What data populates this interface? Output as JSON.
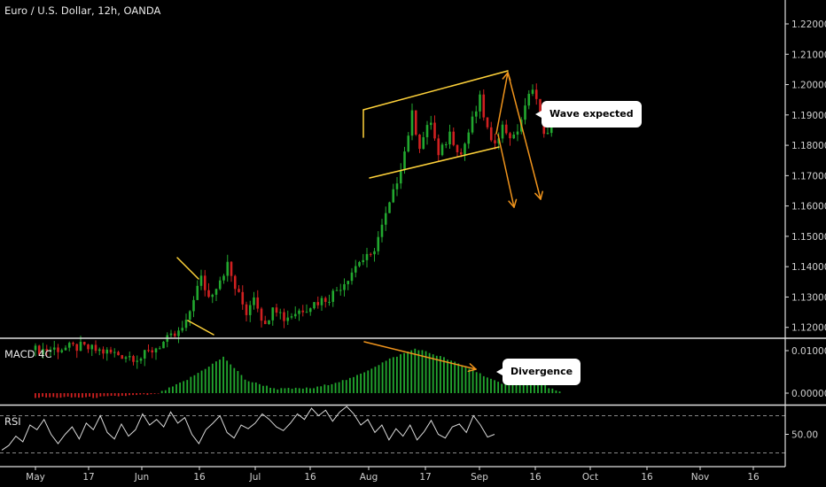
{
  "header": {
    "title": "Euro / U.S. Dollar, 12h, OANDA"
  },
  "macd": {
    "label": "MACD 4C"
  },
  "rsi": {
    "label": "RSI"
  },
  "annotations": {
    "wave": "Wave expected",
    "divergence": "Divergence"
  },
  "colors": {
    "up": "#22a82f",
    "down": "#d02020",
    "trendline": "#ffd23a",
    "arrow": "#f0941c",
    "axis": "#cfcfcf",
    "rsi_line": "#d8d8d8"
  },
  "chart_data": [
    {
      "type": "candlestick",
      "title": "Euro / U.S. Dollar, 12h, OANDA",
      "x_ticks": [
        "May",
        "17",
        "Jun",
        "16",
        "Jul",
        "16",
        "Aug",
        "17",
        "Sep",
        "16",
        "Oct",
        "16",
        "Nov",
        "16"
      ],
      "y_ticks": [
        "1.12000",
        "1.13000",
        "1.14000",
        "1.15000",
        "1.16000",
        "1.17000",
        "1.18000",
        "1.19000",
        "1.20000",
        "1.21000",
        "1.22000"
      ],
      "ylim": [
        1.117,
        1.227
      ],
      "price_path": [
        {
          "x": 0,
          "y": 1.1125
        },
        {
          "x": 6,
          "y": 1.1135
        },
        {
          "x": 10,
          "y": 1.1115
        },
        {
          "x": 14,
          "y": 1.11
        },
        {
          "x": 17,
          "y": 1.115
        },
        {
          "x": 19,
          "y": 1.118
        },
        {
          "x": 20,
          "y": 1.121
        },
        {
          "x": 21,
          "y": 1.13
        },
        {
          "x": 22,
          "y": 1.136
        },
        {
          "x": 23,
          "y": 1.13
        },
        {
          "x": 24,
          "y": 1.134
        },
        {
          "x": 25.5,
          "y": 1.1405
        },
        {
          "x": 26.5,
          "y": 1.133
        },
        {
          "x": 28,
          "y": 1.125
        },
        {
          "x": 29,
          "y": 1.131
        },
        {
          "x": 30.5,
          "y": 1.12
        },
        {
          "x": 31.5,
          "y": 1.128
        },
        {
          "x": 33,
          "y": 1.123
        },
        {
          "x": 35,
          "y": 1.1255
        },
        {
          "x": 37,
          "y": 1.128
        },
        {
          "x": 39,
          "y": 1.13
        },
        {
          "x": 41,
          "y": 1.135
        },
        {
          "x": 43,
          "y": 1.142
        },
        {
          "x": 44.5,
          "y": 1.143
        },
        {
          "x": 46,
          "y": 1.153
        },
        {
          "x": 47.5,
          "y": 1.164
        },
        {
          "x": 49,
          "y": 1.178
        },
        {
          "x": 50,
          "y": 1.19
        },
        {
          "x": 51,
          "y": 1.18
        },
        {
          "x": 52.5,
          "y": 1.188
        },
        {
          "x": 53.5,
          "y": 1.176
        },
        {
          "x": 55,
          "y": 1.184
        },
        {
          "x": 56.5,
          "y": 1.177
        },
        {
          "x": 58,
          "y": 1.188
        },
        {
          "x": 59,
          "y": 1.195
        },
        {
          "x": 60.5,
          "y": 1.18
        },
        {
          "x": 62,
          "y": 1.186
        },
        {
          "x": 63.5,
          "y": 1.182
        },
        {
          "x": 65,
          "y": 1.192
        },
        {
          "x": 66,
          "y": 1.2
        },
        {
          "x": 67,
          "y": 1.19
        },
        {
          "x": 67.8,
          "y": 1.182
        },
        {
          "x": 68.6,
          "y": 1.186
        }
      ],
      "annotations": [
        "Wave expected"
      ]
    },
    {
      "type": "bar",
      "title": "MACD 4C",
      "y_ticks": [
        "0.00000",
        "0.01000"
      ],
      "ylim": [
        -0.0025,
        0.0125
      ],
      "histogram_path": [
        {
          "x": 0,
          "y": -0.001
        },
        {
          "x": 8,
          "y": -0.001
        },
        {
          "x": 12,
          "y": -0.0006
        },
        {
          "x": 16,
          "y": -0.0003
        },
        {
          "x": 20,
          "y": 0.003
        },
        {
          "x": 25,
          "y": 0.0085
        },
        {
          "x": 28,
          "y": 0.003
        },
        {
          "x": 32,
          "y": 0.001
        },
        {
          "x": 37,
          "y": 0.0012
        },
        {
          "x": 42,
          "y": 0.0035
        },
        {
          "x": 47,
          "y": 0.008
        },
        {
          "x": 50.5,
          "y": 0.0105
        },
        {
          "x": 54,
          "y": 0.0085
        },
        {
          "x": 58,
          "y": 0.0055
        },
        {
          "x": 62,
          "y": 0.002
        },
        {
          "x": 66,
          "y": 0.0032
        },
        {
          "x": 69.5,
          "y": 0.0002
        }
      ],
      "annotations": [
        "Divergence"
      ]
    },
    {
      "type": "line",
      "title": "RSI",
      "y_ticks": [
        "50.00"
      ],
      "ylim": [
        20,
        80
      ],
      "values": [
        33,
        38,
        48,
        42,
        60,
        55,
        66,
        50,
        40,
        50,
        58,
        45,
        62,
        55,
        70,
        52,
        45,
        61,
        48,
        55,
        72,
        60,
        66,
        58,
        74,
        62,
        68,
        50,
        40,
        55,
        62,
        70,
        52,
        46,
        60,
        56,
        62,
        72,
        66,
        58,
        54,
        62,
        72,
        66,
        78,
        70,
        76,
        64,
        74,
        80,
        72,
        60,
        66,
        52,
        60,
        44,
        56,
        48,
        60,
        44,
        53,
        65,
        50,
        46,
        58,
        61,
        52,
        70,
        60,
        47,
        50
      ]
    }
  ]
}
